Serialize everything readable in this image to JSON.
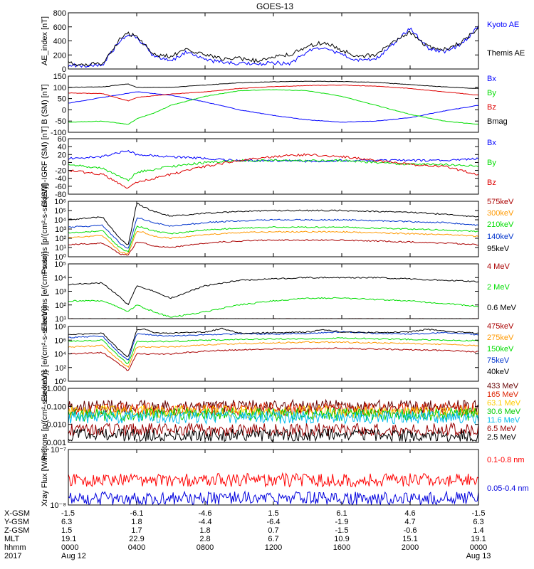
{
  "title": "GOES-13",
  "chart_data": [
    {
      "type": "line",
      "ylabel": "AE_index [nT]",
      "ylim": [
        0,
        800
      ],
      "yticks": [
        "0",
        "200",
        "400",
        "600",
        "800"
      ],
      "series": [
        {
          "name": "Kyoto AE",
          "color": "#0000ff",
          "x": [
            0,
            1,
            2,
            3,
            3.5,
            4,
            5,
            6,
            7,
            8,
            9,
            10,
            11,
            12,
            13,
            14,
            15,
            16,
            17,
            18,
            19,
            20,
            21,
            22,
            23,
            24
          ],
          "values": [
            60,
            40,
            60,
            400,
            480,
            450,
            180,
            120,
            250,
            120,
            100,
            80,
            60,
            90,
            80,
            250,
            300,
            200,
            120,
            150,
            350,
            580,
            300,
            250,
            350,
            600
          ]
        },
        {
          "name": "Themis AE",
          "color": "#000000",
          "x": [
            0,
            1,
            2,
            3,
            3.5,
            4,
            5,
            6,
            7,
            8,
            9,
            10,
            11,
            12,
            13,
            14,
            15,
            16,
            17,
            18,
            19,
            20,
            21,
            22,
            23,
            24
          ],
          "values": [
            80,
            60,
            80,
            420,
            500,
            470,
            200,
            180,
            280,
            200,
            150,
            150,
            120,
            180,
            200,
            330,
            380,
            260,
            180,
            200,
            380,
            520,
            320,
            280,
            380,
            580
          ]
        }
      ]
    },
    {
      "type": "line",
      "ylabel": "B (SM) [nT]",
      "ylim": [
        -100,
        150
      ],
      "yticks": [
        "-100",
        "-50",
        "0",
        "50",
        "100",
        "150"
      ],
      "series": [
        {
          "name": "Bx",
          "color": "#0000ff",
          "x": [
            0,
            2,
            4,
            6,
            8,
            10,
            12,
            14,
            16,
            18,
            20,
            22,
            24
          ],
          "values": [
            30,
            55,
            80,
            65,
            35,
            0,
            -25,
            -45,
            -55,
            -50,
            -35,
            -5,
            20
          ]
        },
        {
          "name": "By",
          "color": "#00dd00",
          "x": [
            0,
            2,
            3.5,
            4,
            5,
            6,
            8,
            10,
            12,
            14,
            16,
            18,
            20,
            22,
            24
          ],
          "values": [
            -55,
            -50,
            -65,
            -40,
            -15,
            20,
            60,
            85,
            90,
            85,
            60,
            20,
            -20,
            -50,
            -65
          ]
        },
        {
          "name": "Bz",
          "color": "#dd0000",
          "x": [
            0,
            2,
            3.5,
            4,
            6,
            8,
            10,
            12,
            14,
            16,
            18,
            20,
            22,
            24
          ],
          "values": [
            75,
            72,
            40,
            55,
            70,
            80,
            95,
            103,
            108,
            110,
            105,
            95,
            80,
            65
          ]
        },
        {
          "name": "Bmag",
          "color": "#000000",
          "x": [
            0,
            2,
            3.5,
            4,
            6,
            8,
            10,
            12,
            14,
            16,
            18,
            20,
            22,
            24
          ],
          "values": [
            100,
            102,
            115,
            100,
            100,
            110,
            120,
            125,
            127,
            126,
            122,
            112,
            102,
            95
          ]
        }
      ]
    },
    {
      "type": "line",
      "ylabel": "B (SM)-IGRF (SM) [nT]",
      "ylim": [
        -80,
        60
      ],
      "yticks": [
        "-80",
        "-60",
        "-40",
        "-20",
        "0",
        "20",
        "40",
        "60"
      ],
      "series": [
        {
          "name": "Bx",
          "color": "#0000ff",
          "x": [
            0,
            2,
            3.5,
            4,
            6,
            8,
            10,
            12,
            14,
            16,
            18,
            20,
            22,
            24
          ],
          "values": [
            10,
            15,
            30,
            20,
            15,
            10,
            5,
            5,
            3,
            5,
            5,
            5,
            5,
            10
          ]
        },
        {
          "name": "By",
          "color": "#00dd00",
          "x": [
            0,
            2,
            3.5,
            4,
            6,
            8,
            10,
            12,
            14,
            16,
            18,
            20,
            22,
            24
          ],
          "values": [
            -5,
            -15,
            -45,
            -25,
            -10,
            0,
            5,
            5,
            5,
            5,
            0,
            -5,
            -5,
            -10
          ]
        },
        {
          "name": "Bz",
          "color": "#dd0000",
          "x": [
            0,
            2,
            3.5,
            4,
            6,
            8,
            10,
            12,
            14,
            16,
            18,
            20,
            22,
            24
          ],
          "values": [
            -20,
            -30,
            -65,
            -50,
            -30,
            -10,
            5,
            15,
            20,
            15,
            5,
            -5,
            -10,
            -30
          ]
        }
      ]
    },
    {
      "type": "line",
      "ylabel": "Protons [p/(cm²-s-sr-keV)]",
      "ylim": [
        0,
        6
      ],
      "log": true,
      "yticks": [
        "10⁰",
        "10¹",
        "10²",
        "10³",
        "10⁴",
        "10⁵",
        "10⁶"
      ],
      "series": [
        {
          "name": "575keV",
          "color": "#aa0000",
          "x": [
            0,
            2,
            3,
            3.5,
            4,
            4.3,
            5,
            6,
            8,
            10,
            12,
            14,
            16,
            18,
            20,
            22,
            24
          ],
          "values": [
            1.3,
            1.5,
            0.3,
            0.2,
            1.6,
            1.5,
            1.2,
            1.0,
            1.5,
            1.7,
            1.8,
            1.8,
            1.8,
            1.7,
            1.6,
            1.5,
            1.3
          ]
        },
        {
          "name": "300keV",
          "color": "#ff9900",
          "x": [
            0,
            2,
            3,
            3.5,
            4,
            4.3,
            5,
            6,
            8,
            10,
            12,
            14,
            16,
            18,
            20,
            22,
            24
          ],
          "values": [
            2.1,
            2.3,
            0.6,
            0.3,
            2.8,
            2.7,
            2.2,
            2.0,
            2.4,
            2.6,
            2.7,
            2.7,
            2.7,
            2.6,
            2.5,
            2.4,
            2.2
          ]
        },
        {
          "name": "210keV",
          "color": "#00dd00",
          "x": [
            0,
            2,
            3,
            3.5,
            4,
            4.3,
            5,
            6,
            8,
            10,
            12,
            14,
            16,
            18,
            20,
            22,
            24
          ],
          "values": [
            2.6,
            2.8,
            1.0,
            0.5,
            3.3,
            3.2,
            2.8,
            2.5,
            2.9,
            3.1,
            3.2,
            3.2,
            3.2,
            3.1,
            3.0,
            2.9,
            2.7
          ]
        },
        {
          "name": "140keV",
          "color": "#0033cc",
          "x": [
            0,
            2,
            3,
            3.5,
            4,
            4.3,
            5,
            6,
            8,
            10,
            12,
            14,
            16,
            18,
            20,
            22,
            24
          ],
          "values": [
            3.2,
            3.4,
            1.5,
            0.8,
            4.2,
            4.1,
            3.7,
            3.3,
            3.7,
            3.9,
            4.0,
            4.0,
            4.0,
            3.9,
            3.8,
            3.7,
            3.4
          ]
        },
        {
          "name": "95keV",
          "color": "#000000",
          "x": [
            0,
            2,
            3,
            3.5,
            4,
            4.3,
            5,
            6,
            8,
            10,
            12,
            14,
            16,
            18,
            20,
            22,
            24
          ],
          "values": [
            4.0,
            4.3,
            2.0,
            1.2,
            5.8,
            5.5,
            4.9,
            4.4,
            4.7,
            4.9,
            5.0,
            5.0,
            5.0,
            4.9,
            4.8,
            4.6,
            4.3
          ]
        }
      ]
    },
    {
      "type": "line",
      "ylabel": "Electrons [e/(cm²-s-sr)]",
      "ylim": [
        1,
        5
      ],
      "log": true,
      "yticks": [
        "10¹",
        "10²",
        "10³",
        "10⁴",
        "10⁵"
      ],
      "series": [
        {
          "name": "4 MeV",
          "color": "#aa0000",
          "x": [
            0,
            24
          ],
          "values": [
            1.0,
            1.0
          ]
        },
        {
          "name": "2 MeV",
          "color": "#00dd00",
          "x": [
            0,
            2,
            3,
            3.5,
            4,
            5,
            6,
            8,
            10,
            12,
            14,
            16,
            18,
            20,
            22,
            24
          ],
          "values": [
            2.3,
            2.3,
            1.8,
            1.5,
            2.0,
            1.5,
            1.1,
            1.5,
            2.0,
            2.3,
            2.5,
            2.5,
            2.4,
            2.3,
            2.1,
            1.9
          ]
        },
        {
          "name": "0.6 MeV",
          "color": "#000000",
          "x": [
            0,
            2,
            3,
            3.5,
            4,
            5,
            6,
            8,
            10,
            12,
            14,
            16,
            18,
            20,
            22,
            24
          ],
          "values": [
            3.5,
            3.6,
            2.6,
            2.0,
            3.4,
            3.0,
            2.5,
            3.4,
            3.8,
            3.9,
            4.0,
            4.0,
            4.0,
            3.9,
            3.8,
            3.7
          ]
        }
      ]
    },
    {
      "type": "line",
      "ylabel": "Electrons [e/(cm²-s-sr-keV)]",
      "ylim": [
        0,
        8
      ],
      "log": true,
      "yticks": [
        "10⁰",
        "10²",
        "10⁴",
        "10⁶",
        "10⁸"
      ],
      "series": [
        {
          "name": "475keV",
          "color": "#aa0000",
          "x": [
            0,
            2,
            3,
            3.5,
            4,
            5,
            6,
            8,
            10,
            12,
            14,
            16,
            18,
            20,
            22,
            24
          ],
          "values": [
            4.0,
            4.2,
            2.5,
            1.5,
            4.0,
            4.0,
            4.0,
            4.4,
            4.6,
            4.7,
            4.8,
            4.8,
            4.7,
            4.6,
            4.5,
            4.3
          ]
        },
        {
          "name": "275keV",
          "color": "#ff9900",
          "x": [
            0,
            2,
            3,
            3.5,
            4,
            5,
            6,
            8,
            10,
            12,
            14,
            16,
            18,
            20,
            22,
            24
          ],
          "values": [
            5.0,
            5.2,
            3.0,
            2.0,
            5.0,
            5.0,
            5.0,
            5.3,
            5.5,
            5.6,
            5.7,
            5.7,
            5.6,
            5.5,
            5.4,
            5.2
          ]
        },
        {
          "name": "150keV",
          "color": "#00dd00",
          "x": [
            0,
            2,
            3,
            3.5,
            4,
            5,
            6,
            8,
            10,
            12,
            14,
            16,
            18,
            20,
            22,
            24
          ],
          "values": [
            5.8,
            6.0,
            3.5,
            2.5,
            5.8,
            5.8,
            5.8,
            6.0,
            6.1,
            6.2,
            6.2,
            6.3,
            6.2,
            6.1,
            6.0,
            5.9
          ]
        },
        {
          "name": "75keV",
          "color": "#0033cc",
          "x": [
            0,
            2,
            3,
            3.5,
            4,
            5,
            6,
            8,
            10,
            12,
            14,
            16,
            18,
            20,
            22,
            24
          ],
          "values": [
            6.4,
            6.6,
            4.0,
            3.0,
            7.0,
            6.7,
            6.6,
            6.8,
            6.9,
            6.9,
            7.0,
            7.2,
            7.0,
            6.9,
            7.1,
            6.8
          ]
        },
        {
          "name": "40keV",
          "color": "#000000",
          "x": [
            0,
            2,
            3,
            3.5,
            4,
            4.5,
            5,
            6,
            8,
            9,
            10,
            12,
            14,
            15,
            16,
            18,
            20,
            21,
            22,
            24
          ],
          "values": [
            6.8,
            7.0,
            4.5,
            3.5,
            7.5,
            7.6,
            7.1,
            7.0,
            7.2,
            7.7,
            7.0,
            7.1,
            7.2,
            7.5,
            7.2,
            7.1,
            7.2,
            7.6,
            7.3,
            7.0
          ]
        }
      ]
    },
    {
      "type": "line",
      "ylabel": "Protons [p/(cm²-s-sr-keV)]",
      "ylim": [
        -3,
        0
      ],
      "log": true,
      "yticks": [
        "0.001",
        "0.010",
        "0.100",
        "1.000"
      ],
      "series": [
        {
          "name": "433 MeV",
          "color": "#660000",
          "x": [
            0,
            24
          ],
          "values": [
            -1.0,
            -1.0
          ]
        },
        {
          "name": "165 MeV",
          "color": "#dd2200",
          "x": [
            0,
            24
          ],
          "values": [
            -1.15,
            -1.15
          ]
        },
        {
          "name": "63.1 MeV",
          "color": "#ffcc00",
          "x": [
            0,
            24
          ],
          "values": [
            -1.3,
            -1.3
          ]
        },
        {
          "name": "30.6 MeV",
          "color": "#00cc00",
          "x": [
            0,
            24
          ],
          "values": [
            -1.45,
            -1.45
          ]
        },
        {
          "name": "11.6 MeV",
          "color": "#00bbee",
          "x": [
            0,
            24
          ],
          "values": [
            -1.6,
            -1.6
          ]
        },
        {
          "name": "6.5 MeV",
          "color": "#990000",
          "x": [
            0,
            24
          ],
          "values": [
            -2.3,
            -2.3
          ]
        },
        {
          "name": "2.5 MeV",
          "color": "#000000",
          "x": [
            0,
            24
          ],
          "values": [
            -2.6,
            -2.6
          ]
        }
      ]
    },
    {
      "type": "line",
      "ylabel": "Xray Flux [W/m²]",
      "ylim": [
        -8,
        -7
      ],
      "log": true,
      "yticks": [
        "10⁻⁸",
        "10⁻⁷"
      ],
      "series": [
        {
          "name": "0.1-0.8 nm",
          "color": "#ff0000",
          "x": [
            0,
            24
          ],
          "values": [
            -7.55,
            -7.55
          ]
        },
        {
          "name": "0.05-0.4 nm",
          "color": "#0000dd",
          "x": [
            0,
            24
          ],
          "values": [
            -7.88,
            -7.88
          ]
        }
      ]
    }
  ],
  "x_axis": {
    "ticks": [
      0,
      4,
      8,
      12,
      16,
      20,
      24
    ],
    "rows": [
      {
        "label": "X-GSM",
        "values": [
          "-1.5",
          "-6.1",
          "-4.6",
          "1.5",
          "6.1",
          "4.6",
          "-1.5"
        ]
      },
      {
        "label": "Y-GSM",
        "values": [
          "6.3",
          "1.8",
          "-4.4",
          "-6.4",
          "-1.9",
          "4.7",
          "6.3"
        ]
      },
      {
        "label": "Z-GSM",
        "values": [
          "1.5",
          "1.7",
          "1.8",
          "0.7",
          "-1.5",
          "-0.6",
          "1.4"
        ]
      },
      {
        "label": "MLT",
        "values": [
          "19.1",
          "22.9",
          "2.8",
          "6.7",
          "10.9",
          "15.1",
          "19.1"
        ]
      },
      {
        "label": "hhmm",
        "values": [
          "0000",
          "0400",
          "0800",
          "1200",
          "1600",
          "2000",
          "0000"
        ]
      },
      {
        "label": "2017",
        "values": [
          "Aug 12",
          "",
          "",
          "",
          "",
          "",
          "Aug 13"
        ]
      }
    ]
  }
}
